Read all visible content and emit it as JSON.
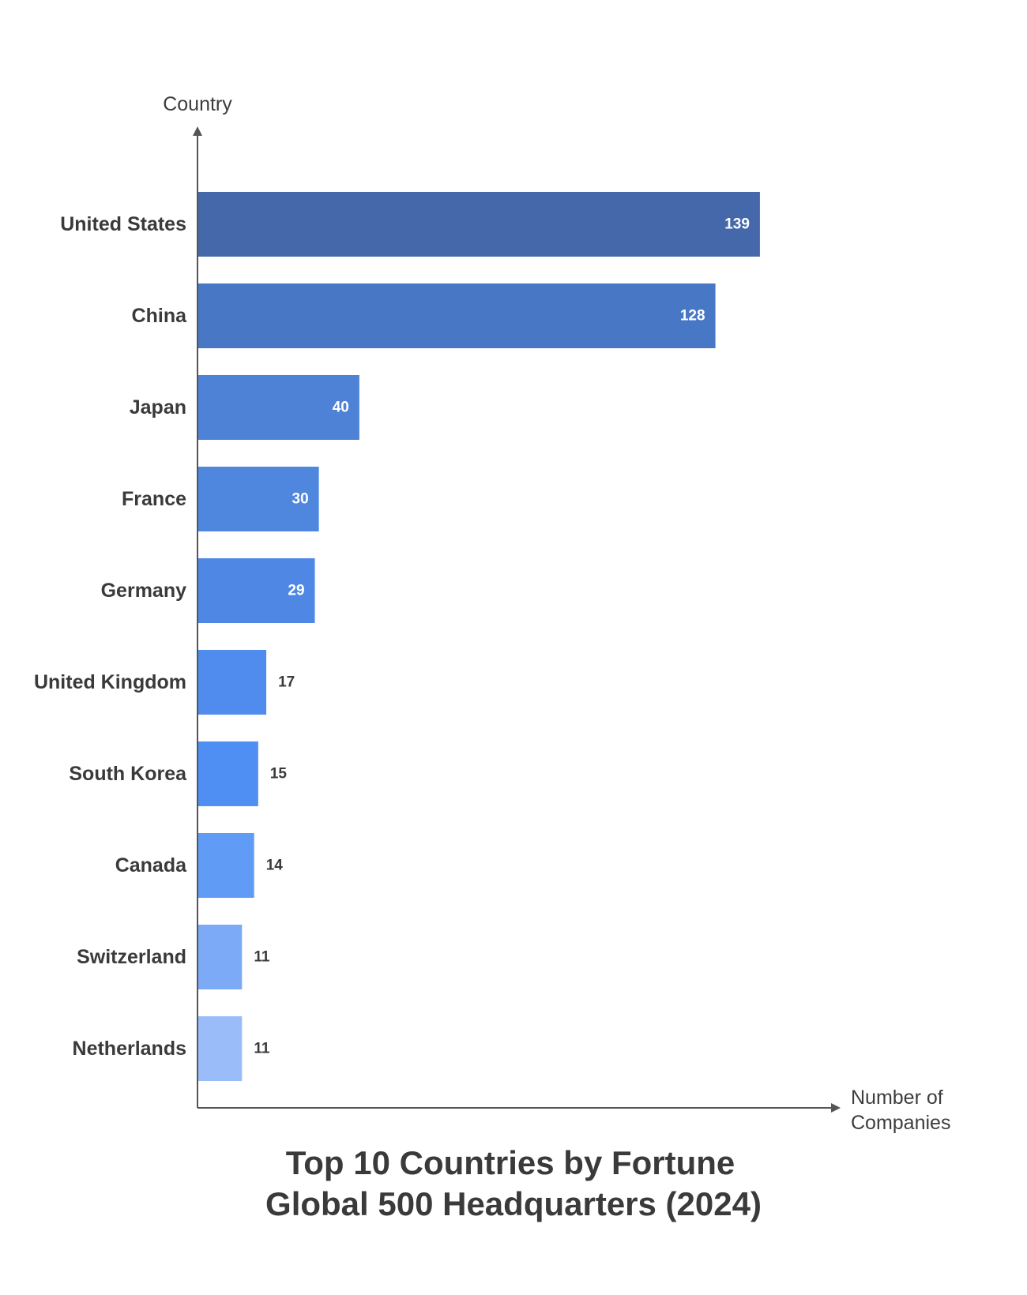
{
  "chart_data": {
    "type": "bar",
    "orientation": "horizontal",
    "title_lines": [
      "Top 10 Countries by Fortune",
      "Global 500 Headquarters (2024)"
    ],
    "ylabel": "Country",
    "xlabel_lines": [
      "Number of",
      "Companies"
    ],
    "categories": [
      "United States",
      "China",
      "Japan",
      "France",
      "Germany",
      "United Kingdom",
      "South Korea",
      "Canada",
      "Switzerland",
      "Netherlands"
    ],
    "values": [
      139,
      128,
      40,
      30,
      29,
      17,
      15,
      14,
      11,
      11
    ],
    "xlim": [
      0,
      148
    ],
    "grid": false,
    "legend": "none",
    "colors": [
      "#4468a9",
      "#4878c5",
      "#4e82d6",
      "#4f86de",
      "#4f88e4",
      "#4f8ced",
      "#4f8ef3",
      "#609cf6",
      "#7caaf7",
      "#9abdf9"
    ],
    "label_color_inside": "#ffffff",
    "label_color_outside": "#3a3a3a",
    "axis_color": "#555555"
  }
}
